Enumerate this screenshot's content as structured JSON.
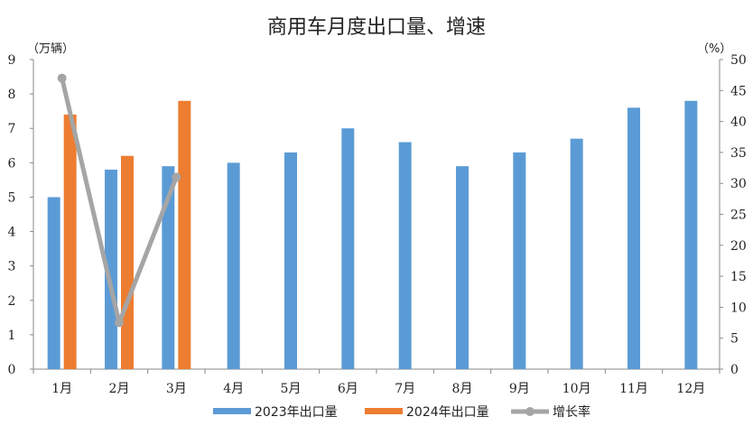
{
  "chart_data": {
    "type": "bar",
    "title": "商用车月度出口量、增速",
    "categories": [
      "1月",
      "2月",
      "3月",
      "4月",
      "5月",
      "6月",
      "7月",
      "8月",
      "9月",
      "10月",
      "11月",
      "12月"
    ],
    "series": [
      {
        "name": "2023年出口量",
        "kind": "bar",
        "axis": "left",
        "color": "#5B9BD5",
        "values": [
          5.0,
          5.8,
          5.9,
          6.0,
          6.3,
          7.0,
          6.6,
          5.9,
          6.3,
          6.7,
          7.6,
          7.8
        ]
      },
      {
        "name": "2024年出口量",
        "kind": "bar",
        "axis": "left",
        "color": "#ED7D31",
        "values": [
          7.4,
          6.2,
          7.8,
          null,
          null,
          null,
          null,
          null,
          null,
          null,
          null,
          null
        ]
      },
      {
        "name": "增长率",
        "kind": "line",
        "axis": "right",
        "color": "#A5A5A5",
        "values": [
          47,
          7.5,
          31,
          null,
          null,
          null,
          null,
          null,
          null,
          null,
          null,
          null
        ]
      }
    ],
    "y_left": {
      "label": "（万辆）",
      "min": 0,
      "max": 9,
      "step": 1
    },
    "y_right": {
      "label": "（%）",
      "min": 0,
      "max": 50,
      "step": 5
    },
    "legend_position": "bottom",
    "grid": false
  }
}
